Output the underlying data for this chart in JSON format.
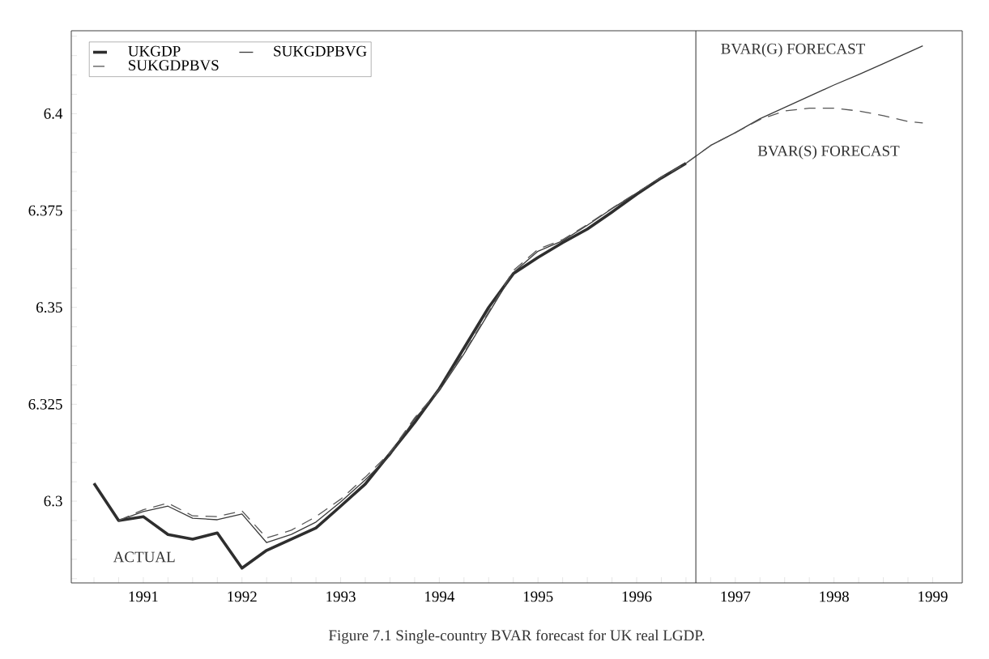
{
  "chart_data": {
    "type": "line",
    "xlabel": null,
    "annotations": [
      "ACTUAL",
      "BVAR(G) FORECAST",
      "BVAR(S) FORECAST",
      "Figure 7.1 Single-country BVAR forecast for UK real LGDP."
    ],
    "series": [
      {
        "name": "UKGDP",
        "color": "#2e2e2e",
        "line_style": "solid",
        "x": [
          1990.5,
          1990.75,
          1991,
          1991.25,
          1991.5,
          1991.75,
          1992,
          1992.25,
          1992.5,
          1992.75,
          1993,
          1993.25,
          1993.5,
          1993.75,
          1994,
          1994.25,
          1994.5,
          1994.75,
          1995,
          1995.25,
          1995.5,
          1995.75,
          1996,
          1996.25,
          1996.5
        ],
        "values": [
          6.3046,
          6.295,
          6.296,
          6.2914,
          6.2902,
          6.2918,
          6.2827,
          6.2873,
          6.2902,
          6.2931,
          6.2987,
          6.3044,
          6.3123,
          6.3203,
          6.329,
          6.3395,
          6.35,
          6.3587,
          6.3629,
          6.3667,
          6.3702,
          6.3746,
          6.3792,
          6.3834,
          6.3872
        ]
      },
      {
        "name": "SUKGDPBVG",
        "color": "#3a3a3a",
        "line_style": "solid",
        "x": [
          1990.75,
          1991,
          1991.25,
          1991.5,
          1991.75,
          1992,
          1992.25,
          1992.5,
          1992.75,
          1993,
          1993.25,
          1993.5,
          1993.75,
          1994,
          1994.25,
          1994.5,
          1994.75,
          1995,
          1995.25,
          1995.5,
          1995.75,
          1996,
          1996.25,
          1996.5,
          1996.75,
          1997,
          1997.25,
          1997.5,
          1997.75,
          1998,
          1998.25,
          1998.5,
          1998.75,
          1998.9
        ],
        "values": [
          6.295,
          6.2973,
          6.2987,
          6.2956,
          6.2952,
          6.2967,
          6.2893,
          6.2914,
          6.2946,
          6.2998,
          6.3055,
          6.3118,
          6.3212,
          6.3285,
          6.338,
          6.3485,
          6.359,
          6.3645,
          6.3672,
          6.3712,
          6.3755,
          6.3795,
          6.3836,
          6.3872,
          6.3918,
          6.3951,
          6.3987,
          6.4016,
          6.4045,
          6.4074,
          6.4101,
          6.4129,
          6.4158,
          6.4175
        ]
      },
      {
        "name": "SUKGDPBVS",
        "color": "#555555",
        "line_style": "dashed",
        "x": [
          1990.75,
          1991,
          1991.25,
          1991.5,
          1991.75,
          1992,
          1992.25,
          1992.5,
          1992.75,
          1993,
          1993.25,
          1993.5,
          1993.75,
          1994,
          1994.25,
          1994.5,
          1994.75,
          1995,
          1995.25,
          1995.5,
          1995.75,
          1996,
          1996.25,
          1996.5,
          1996.75,
          1997,
          1997.25,
          1997.5,
          1997.75,
          1998,
          1998.25,
          1998.5,
          1998.75,
          1998.9
        ],
        "values": [
          6.295,
          6.2978,
          6.2995,
          6.2962,
          6.296,
          6.2975,
          6.2905,
          6.2925,
          6.296,
          6.3005,
          6.3062,
          6.3125,
          6.3215,
          6.3288,
          6.3383,
          6.3488,
          6.3595,
          6.365,
          6.3675,
          6.3714,
          6.3756,
          6.3796,
          6.3836,
          6.3872,
          6.3918,
          6.3951,
          6.3985,
          6.4007,
          6.4014,
          6.4014,
          6.4007,
          6.3995,
          6.398,
          6.3976
        ]
      }
    ],
    "ref_lines": [
      {
        "axis": "x",
        "value": 1996.6,
        "color": "#2e2e2e",
        "line_style": "solid"
      }
    ],
    "xlim": [
      1990.27,
      1999.3
    ],
    "ylim": [
      6.2789,
      6.4214
    ],
    "xticks": [
      {
        "value": 1990.5,
        "label": null
      },
      {
        "value": 1990.75,
        "label": null
      },
      1991,
      {
        "value": 1991.25,
        "label": null
      },
      {
        "value": 1991.5,
        "label": null
      },
      {
        "value": 1991.75,
        "label": null
      },
      1992,
      {
        "value": 1992.25,
        "label": null
      },
      {
        "value": 1992.5,
        "label": null
      },
      {
        "value": 1992.75,
        "label": null
      },
      1993,
      {
        "value": 1993.25,
        "label": null
      },
      {
        "value": 1993.5,
        "label": null
      },
      {
        "value": 1993.75,
        "label": null
      },
      1994,
      {
        "value": 1994.25,
        "label": null
      },
      {
        "value": 1994.5,
        "label": null
      },
      {
        "value": 1994.75,
        "label": null
      },
      1995,
      {
        "value": 1995.25,
        "label": null
      },
      {
        "value": 1995.5,
        "label": null
      },
      {
        "value": 1995.75,
        "label": null
      },
      1996,
      {
        "value": 1996.25,
        "label": null
      },
      {
        "value": 1996.5,
        "label": null
      },
      {
        "value": 1996.75,
        "label": null
      },
      1997,
      {
        "value": 1997.25,
        "label": null
      },
      {
        "value": 1997.5,
        "label": null
      },
      {
        "value": 1997.75,
        "label": null
      },
      1998,
      {
        "value": 1998.25,
        "label": null
      },
      {
        "value": 1998.5,
        "label": null
      },
      {
        "value": 1998.75,
        "label": null
      },
      1999
    ],
    "yticks": [
      {
        "value": 6.28,
        "label": null
      },
      {
        "value": 6.285,
        "label": null
      },
      {
        "value": 6.29,
        "label": null
      },
      {
        "value": 6.295,
        "label": null
      },
      6.3,
      {
        "value": 6.305,
        "label": null
      },
      {
        "value": 6.31,
        "label": null
      },
      {
        "value": 6.315,
        "label": null
      },
      {
        "value": 6.32,
        "label": null
      },
      6.325,
      {
        "value": 6.33,
        "label": null
      },
      {
        "value": 6.335,
        "label": null
      },
      {
        "value": 6.34,
        "label": null
      },
      {
        "value": 6.345,
        "label": null
      },
      6.35,
      {
        "value": 6.355,
        "label": null
      },
      {
        "value": 6.36,
        "label": null
      },
      {
        "value": 6.365,
        "label": null
      },
      {
        "value": 6.37,
        "label": null
      },
      6.375,
      {
        "value": 6.38,
        "label": null
      },
      {
        "value": 6.385,
        "label": null
      },
      {
        "value": 6.39,
        "label": null
      },
      {
        "value": 6.395,
        "label": null
      },
      6.4,
      {
        "value": 6.405,
        "label": null
      },
      {
        "value": 6.41,
        "label": null
      },
      {
        "value": 6.415,
        "label": null
      },
      {
        "value": 6.42,
        "label": null
      }
    ],
    "grid": false,
    "legend": "top left",
    "marker": "none"
  }
}
